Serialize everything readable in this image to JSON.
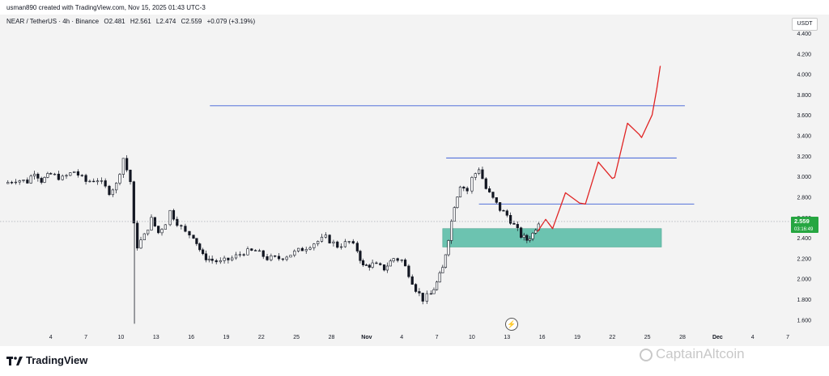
{
  "header": {
    "created_by": "usman890 created with TradingView.com, Nov 15, 2025 01:43 UTC-3"
  },
  "symbol": {
    "name": "NEAR / TetherUS · 4h · Binance",
    "open": "O2.481",
    "high": "H2.561",
    "low": "L2.474",
    "close": "C2.559",
    "change": "+0.079 (+3.19%)"
  },
  "currency_button": "USDT",
  "price_tag": {
    "price": "2.559",
    "countdown": "03:16:49",
    "color": "#26a641"
  },
  "colors": {
    "candle": "#131722",
    "level_line": "#3d5fd6",
    "zone_fill": "#6cc3b0",
    "projection": "#e02424",
    "panel": "#f3f3f3"
  },
  "footer": {
    "brand": "TradingView"
  },
  "watermark": "CaptainAltcoin",
  "chart_data": {
    "type": "candlestick",
    "y_axis": {
      "range": [
        1.5,
        4.55
      ],
      "ticks": [
        "1.600",
        "1.800",
        "2.000",
        "2.200",
        "2.400",
        "2.600",
        "2.800",
        "3.000",
        "3.200",
        "3.400",
        "3.600",
        "3.800",
        "4.000",
        "4.200",
        "4.400"
      ]
    },
    "x_axis": {
      "range_days": [
        0,
        248
      ],
      "ticks": [
        {
          "label": "4",
          "day": 4
        },
        {
          "label": "7",
          "day": 7
        },
        {
          "label": "10",
          "day": 10
        },
        {
          "label": "13",
          "day": 13
        },
        {
          "label": "16",
          "day": 16
        },
        {
          "label": "19",
          "day": 19
        },
        {
          "label": "22",
          "day": 22
        },
        {
          "label": "25",
          "day": 25
        },
        {
          "label": "28",
          "day": 28
        },
        {
          "label": "Nov",
          "day": 31
        },
        {
          "label": "4",
          "day": 34
        },
        {
          "label": "7",
          "day": 37
        },
        {
          "label": "10",
          "day": 40
        },
        {
          "label": "13",
          "day": 43
        },
        {
          "label": "16",
          "day": 46
        },
        {
          "label": "19",
          "day": 49
        },
        {
          "label": "22",
          "day": 52
        },
        {
          "label": "25",
          "day": 55
        },
        {
          "label": "28",
          "day": 58
        },
        {
          "label": "Dec",
          "day": 61
        },
        {
          "label": "4",
          "day": 64
        },
        {
          "label": "7",
          "day": 67
        }
      ]
    },
    "price_path": [
      [
        0.0,
        2.93
      ],
      [
        1.0,
        2.97
      ],
      [
        2.0,
        2.95
      ],
      [
        2.6,
        3.05
      ],
      [
        3.2,
        2.96
      ],
      [
        4.0,
        3.02
      ],
      [
        5.0,
        2.98
      ],
      [
        6.0,
        3.05
      ],
      [
        7.0,
        2.95
      ],
      [
        8.0,
        2.97
      ],
      [
        9.0,
        2.85
      ],
      [
        9.6,
        2.92
      ],
      [
        10.2,
        3.18
      ],
      [
        10.8,
        2.95
      ],
      [
        11.1,
        2.52
      ],
      [
        11.4,
        2.32
      ],
      [
        12.0,
        2.42
      ],
      [
        12.6,
        2.58
      ],
      [
        13.2,
        2.45
      ],
      [
        13.8,
        2.55
      ],
      [
        14.2,
        2.66
      ],
      [
        14.8,
        2.55
      ],
      [
        15.5,
        2.45
      ],
      [
        16.2,
        2.42
      ],
      [
        17.0,
        2.22
      ],
      [
        17.8,
        2.18
      ],
      [
        18.5,
        2.16
      ],
      [
        19.5,
        2.2
      ],
      [
        20.5,
        2.26
      ],
      [
        21.5,
        2.27
      ],
      [
        22.5,
        2.2
      ],
      [
        23.5,
        2.2
      ],
      [
        24.5,
        2.24
      ],
      [
        25.5,
        2.29
      ],
      [
        26.5,
        2.35
      ],
      [
        27.5,
        2.4
      ],
      [
        28.5,
        2.32
      ],
      [
        29.5,
        2.36
      ],
      [
        30.2,
        2.28
      ],
      [
        30.7,
        2.12
      ],
      [
        31.5,
        2.14
      ],
      [
        32.5,
        2.1
      ],
      [
        33.3,
        2.2
      ],
      [
        34.0,
        2.18
      ],
      [
        34.6,
        2.05
      ],
      [
        35.2,
        1.9
      ],
      [
        35.8,
        1.8
      ],
      [
        36.5,
        1.85
      ],
      [
        37.0,
        1.96
      ],
      [
        37.5,
        2.1
      ],
      [
        38.0,
        2.4
      ],
      [
        38.5,
        2.72
      ],
      [
        39.0,
        2.92
      ],
      [
        39.6,
        2.86
      ],
      [
        40.0,
        2.98
      ],
      [
        40.6,
        3.08
      ],
      [
        41.2,
        2.88
      ],
      [
        41.8,
        2.78
      ],
      [
        42.4,
        2.68
      ],
      [
        43.0,
        2.62
      ],
      [
        43.6,
        2.52
      ],
      [
        44.2,
        2.42
      ],
      [
        44.7,
        2.38
      ],
      [
        45.2,
        2.44
      ],
      [
        45.7,
        2.56
      ]
    ],
    "levels": [
      {
        "price": 3.69,
        "from_day": 17.6,
        "to_day": 58.2
      },
      {
        "price": 3.18,
        "from_day": 37.8,
        "to_day": 57.5
      },
      {
        "price": 2.73,
        "from_day": 40.6,
        "to_day": 59.0
      }
    ],
    "zone": {
      "low": 2.31,
      "high": 2.49,
      "from_day": 37.5,
      "to_day": 56.2
    },
    "projection": [
      [
        45.6,
        2.46
      ],
      [
        46.3,
        2.58
      ],
      [
        46.9,
        2.49
      ],
      [
        48.0,
        2.84
      ],
      [
        49.2,
        2.74
      ],
      [
        49.7,
        2.73
      ],
      [
        50.8,
        3.14
      ],
      [
        52.0,
        2.98
      ],
      [
        52.2,
        2.99
      ],
      [
        53.3,
        3.52
      ],
      [
        54.3,
        3.41
      ],
      [
        54.5,
        3.38
      ],
      [
        55.4,
        3.6
      ],
      [
        55.8,
        3.85
      ],
      [
        56.1,
        4.08
      ]
    ]
  }
}
